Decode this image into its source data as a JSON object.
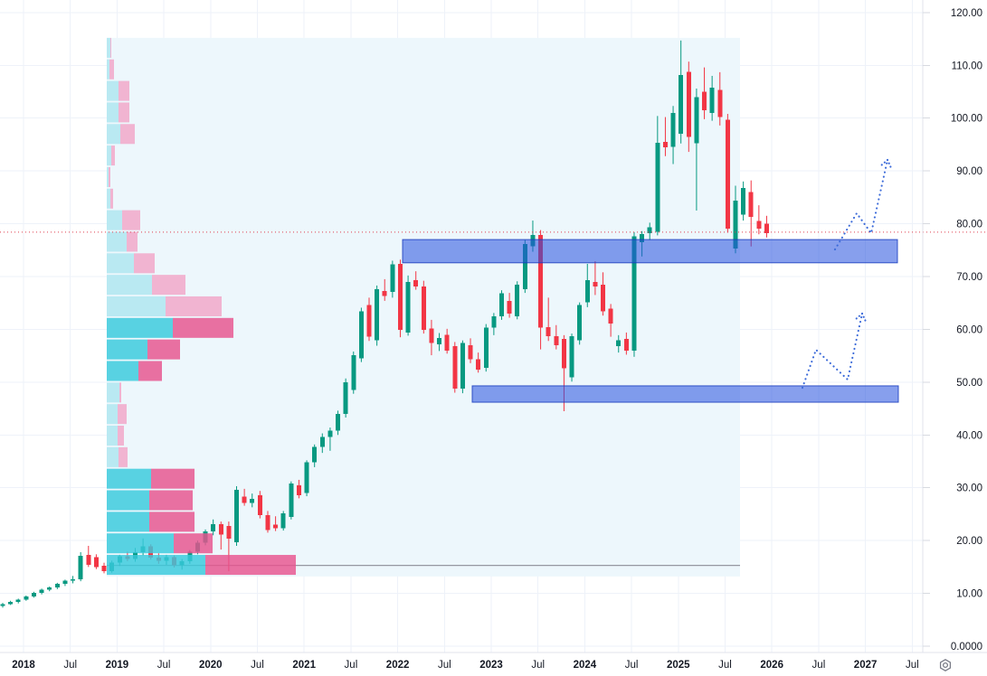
{
  "style": {
    "background": "#ffffff",
    "grid_color": "#eef2f9",
    "axis_border_color": "#e0e3eb",
    "axis_text_color": "#131722",
    "up_color": "#089981",
    "down_color": "#f23645",
    "range_box_fill": "#edf7fc",
    "range_baseline_color": "#9598a1",
    "profile_buy_light": "#aee7f1",
    "profile_sell_light": "#f2a6c8",
    "profile_buy_dark": "#38cadd",
    "profile_sell_dark": "#e8538e",
    "zone_fill": "rgba(37,80,222,0.55)",
    "zone_border": "rgba(25,60,190,0.85)",
    "arrow_color": "#3b6ad9",
    "price_line_color": "#df3d4e",
    "gear_icon_color": "#787b86"
  },
  "price_axis": {
    "ticks": [
      {
        "label": "120.00",
        "value": 120
      },
      {
        "label": "110.00",
        "value": 110
      },
      {
        "label": "100.00",
        "value": 100
      },
      {
        "label": "90.00",
        "value": 90
      },
      {
        "label": "80.00",
        "value": 80
      },
      {
        "label": "70.00",
        "value": 70
      },
      {
        "label": "60.00",
        "value": 60
      },
      {
        "label": "50.00",
        "value": 50
      },
      {
        "label": "40.00",
        "value": 40
      },
      {
        "label": "30.00",
        "value": 30
      },
      {
        "label": "20.00",
        "value": 20
      },
      {
        "label": "10.00",
        "value": 10
      },
      {
        "label": "0.0000",
        "value": 0
      }
    ],
    "settings_icon": "gear-icon"
  },
  "time_axis": {
    "ticks": [
      "2018",
      "Jul",
      "2019",
      "Jul",
      "2020",
      "Jul",
      "2021",
      "Jul",
      "2022",
      "Jul",
      "2023",
      "Jul",
      "2024",
      "Jul",
      "2025",
      "Jul",
      "2026",
      "Jul",
      "2027",
      "Jul"
    ]
  },
  "chart_data": {
    "type": "candlestick",
    "timeframe": "1M",
    "ylim": [
      0,
      123
    ],
    "grid": true,
    "price_line": {
      "value": 78.4,
      "style": "dotted"
    },
    "candles": [
      {
        "t": "2017-10",
        "o": 7.6,
        "h": 8.2,
        "l": 7.3,
        "c": 8.0
      },
      {
        "t": "2017-11",
        "o": 8.0,
        "h": 8.6,
        "l": 7.8,
        "c": 8.4
      },
      {
        "t": "2017-12",
        "o": 8.4,
        "h": 9.0,
        "l": 8.1,
        "c": 8.8
      },
      {
        "t": "2018-01",
        "o": 8.8,
        "h": 9.6,
        "l": 8.6,
        "c": 9.4
      },
      {
        "t": "2018-02",
        "o": 9.4,
        "h": 10.3,
        "l": 9.2,
        "c": 10.1
      },
      {
        "t": "2018-03",
        "o": 10.1,
        "h": 10.9,
        "l": 9.8,
        "c": 10.7
      },
      {
        "t": "2018-04",
        "o": 10.7,
        "h": 11.3,
        "l": 10.4,
        "c": 11.1
      },
      {
        "t": "2018-05",
        "o": 11.1,
        "h": 12.0,
        "l": 10.8,
        "c": 11.8
      },
      {
        "t": "2018-06",
        "o": 11.8,
        "h": 12.6,
        "l": 11.4,
        "c": 12.4
      },
      {
        "t": "2018-07",
        "o": 12.4,
        "h": 13.3,
        "l": 11.9,
        "c": 12.7
      },
      {
        "t": "2018-08",
        "o": 12.7,
        "h": 17.8,
        "l": 12.3,
        "c": 17.1
      },
      {
        "t": "2018-09",
        "o": 17.3,
        "h": 19.0,
        "l": 15.0,
        "c": 15.4
      },
      {
        "t": "2018-10",
        "o": 16.9,
        "h": 17.4,
        "l": 14.6,
        "c": 15.0
      },
      {
        "t": "2018-11",
        "o": 15.2,
        "h": 15.8,
        "l": 13.8,
        "c": 14.2
      },
      {
        "t": "2018-12",
        "o": 14.2,
        "h": 16.2,
        "l": 13.9,
        "c": 15.8
      },
      {
        "t": "2019-01",
        "o": 15.8,
        "h": 17.3,
        "l": 15.2,
        "c": 17.0
      },
      {
        "t": "2019-02",
        "o": 17.0,
        "h": 17.9,
        "l": 16.1,
        "c": 16.5
      },
      {
        "t": "2019-03",
        "o": 16.5,
        "h": 18.6,
        "l": 16.0,
        "c": 17.8
      },
      {
        "t": "2019-04",
        "o": 17.8,
        "h": 20.4,
        "l": 17.2,
        "c": 18.9
      },
      {
        "t": "2019-05",
        "o": 18.9,
        "h": 19.3,
        "l": 16.4,
        "c": 16.8
      },
      {
        "t": "2019-06",
        "o": 16.8,
        "h": 17.6,
        "l": 15.6,
        "c": 16.2
      },
      {
        "t": "2019-07",
        "o": 16.2,
        "h": 17.3,
        "l": 15.4,
        "c": 16.9
      },
      {
        "t": "2019-08",
        "o": 16.9,
        "h": 17.2,
        "l": 14.9,
        "c": 15.3
      },
      {
        "t": "2019-09",
        "o": 15.3,
        "h": 16.5,
        "l": 14.5,
        "c": 16.1
      },
      {
        "t": "2019-10",
        "o": 16.1,
        "h": 18.2,
        "l": 15.6,
        "c": 17.9
      },
      {
        "t": "2019-11",
        "o": 17.9,
        "h": 20.0,
        "l": 17.4,
        "c": 19.6
      },
      {
        "t": "2019-12",
        "o": 19.6,
        "h": 22.1,
        "l": 19.1,
        "c": 21.7
      },
      {
        "t": "2020-01",
        "o": 21.7,
        "h": 24.0,
        "l": 21.0,
        "c": 23.1
      },
      {
        "t": "2020-02",
        "o": 23.1,
        "h": 23.6,
        "l": 18.3,
        "c": 21.1
      },
      {
        "t": "2020-03",
        "o": 22.8,
        "h": 23.6,
        "l": 14.2,
        "c": 20.4
      },
      {
        "t": "2020-04",
        "o": 19.7,
        "h": 30.3,
        "l": 19.0,
        "c": 29.6
      },
      {
        "t": "2020-05",
        "o": 28.3,
        "h": 29.8,
        "l": 26.6,
        "c": 27.1
      },
      {
        "t": "2020-06",
        "o": 27.1,
        "h": 28.9,
        "l": 26.3,
        "c": 27.9
      },
      {
        "t": "2020-07",
        "o": 28.6,
        "h": 29.4,
        "l": 24.2,
        "c": 24.8
      },
      {
        "t": "2020-08",
        "o": 24.8,
        "h": 25.6,
        "l": 21.5,
        "c": 22.0
      },
      {
        "t": "2020-09",
        "o": 23.0,
        "h": 24.6,
        "l": 21.8,
        "c": 22.3
      },
      {
        "t": "2020-10",
        "o": 22.3,
        "h": 25.6,
        "l": 21.9,
        "c": 25.2
      },
      {
        "t": "2020-11",
        "o": 24.5,
        "h": 31.2,
        "l": 24.0,
        "c": 30.8
      },
      {
        "t": "2020-12",
        "o": 30.5,
        "h": 31.5,
        "l": 28.0,
        "c": 28.6
      },
      {
        "t": "2021-01",
        "o": 29.0,
        "h": 35.2,
        "l": 28.4,
        "c": 34.8
      },
      {
        "t": "2021-02",
        "o": 34.8,
        "h": 38.2,
        "l": 33.9,
        "c": 37.7
      },
      {
        "t": "2021-03",
        "o": 37.7,
        "h": 40.3,
        "l": 36.6,
        "c": 39.6
      },
      {
        "t": "2021-04",
        "o": 39.6,
        "h": 41.4,
        "l": 37.0,
        "c": 40.8
      },
      {
        "t": "2021-05",
        "o": 40.8,
        "h": 44.6,
        "l": 40.0,
        "c": 44.0
      },
      {
        "t": "2021-06",
        "o": 44.0,
        "h": 50.7,
        "l": 43.3,
        "c": 50.0
      },
      {
        "t": "2021-07",
        "o": 48.5,
        "h": 55.8,
        "l": 47.8,
        "c": 55.1
      },
      {
        "t": "2021-08",
        "o": 54.5,
        "h": 64.1,
        "l": 53.8,
        "c": 63.4
      },
      {
        "t": "2021-09",
        "o": 64.6,
        "h": 66.0,
        "l": 57.8,
        "c": 58.6
      },
      {
        "t": "2021-10",
        "o": 57.9,
        "h": 68.3,
        "l": 56.9,
        "c": 67.6
      },
      {
        "t": "2021-11",
        "o": 67.3,
        "h": 69.5,
        "l": 65.4,
        "c": 66.3
      },
      {
        "t": "2021-12",
        "o": 67.1,
        "h": 73.0,
        "l": 66.0,
        "c": 72.3
      },
      {
        "t": "2022-01",
        "o": 72.4,
        "h": 73.2,
        "l": 58.5,
        "c": 59.9
      },
      {
        "t": "2022-02",
        "o": 59.4,
        "h": 70.2,
        "l": 58.8,
        "c": 69.0
      },
      {
        "t": "2022-03",
        "o": 69.3,
        "h": 71.0,
        "l": 67.5,
        "c": 68.1
      },
      {
        "t": "2022-04",
        "o": 68.1,
        "h": 69.2,
        "l": 59.2,
        "c": 59.9
      },
      {
        "t": "2022-05",
        "o": 60.2,
        "h": 61.8,
        "l": 55.1,
        "c": 57.4
      },
      {
        "t": "2022-06",
        "o": 57.2,
        "h": 59.3,
        "l": 55.9,
        "c": 58.4
      },
      {
        "t": "2022-07",
        "o": 59.0,
        "h": 60.1,
        "l": 55.4,
        "c": 56.0
      },
      {
        "t": "2022-08",
        "o": 56.8,
        "h": 57.6,
        "l": 48.0,
        "c": 48.8
      },
      {
        "t": "2022-09",
        "o": 48.8,
        "h": 57.9,
        "l": 47.9,
        "c": 57.4
      },
      {
        "t": "2022-10",
        "o": 57.0,
        "h": 58.3,
        "l": 53.6,
        "c": 54.3
      },
      {
        "t": "2022-11",
        "o": 54.3,
        "h": 55.6,
        "l": 51.8,
        "c": 52.4
      },
      {
        "t": "2022-12",
        "o": 52.7,
        "h": 61.0,
        "l": 52.0,
        "c": 60.3
      },
      {
        "t": "2023-01",
        "o": 60.3,
        "h": 63.1,
        "l": 58.9,
        "c": 62.5
      },
      {
        "t": "2023-02",
        "o": 62.5,
        "h": 67.4,
        "l": 61.8,
        "c": 66.8
      },
      {
        "t": "2023-03",
        "o": 65.4,
        "h": 66.9,
        "l": 62.2,
        "c": 63.0
      },
      {
        "t": "2023-04",
        "o": 62.5,
        "h": 69.1,
        "l": 61.9,
        "c": 68.5
      },
      {
        "t": "2023-05",
        "o": 67.6,
        "h": 76.9,
        "l": 66.9,
        "c": 76.2
      },
      {
        "t": "2023-06",
        "o": 75.7,
        "h": 80.6,
        "l": 74.7,
        "c": 77.9
      },
      {
        "t": "2023-07",
        "o": 77.9,
        "h": 78.8,
        "l": 56.2,
        "c": 60.3
      },
      {
        "t": "2023-08",
        "o": 60.4,
        "h": 66.0,
        "l": 57.8,
        "c": 58.7
      },
      {
        "t": "2023-09",
        "o": 58.7,
        "h": 60.8,
        "l": 56.2,
        "c": 57.0
      },
      {
        "t": "2023-10",
        "o": 58.2,
        "h": 58.9,
        "l": 44.5,
        "c": 52.6
      },
      {
        "t": "2023-11",
        "o": 50.9,
        "h": 59.2,
        "l": 50.1,
        "c": 58.7
      },
      {
        "t": "2023-12",
        "o": 57.9,
        "h": 65.1,
        "l": 57.1,
        "c": 64.6
      },
      {
        "t": "2024-01",
        "o": 65.1,
        "h": 72.4,
        "l": 64.2,
        "c": 69.3
      },
      {
        "t": "2024-02",
        "o": 69.0,
        "h": 72.9,
        "l": 66.5,
        "c": 68.1
      },
      {
        "t": "2024-03",
        "o": 68.5,
        "h": 70.8,
        "l": 62.6,
        "c": 63.4
      },
      {
        "t": "2024-04",
        "o": 63.9,
        "h": 64.8,
        "l": 58.6,
        "c": 61.1
      },
      {
        "t": "2024-05",
        "o": 56.8,
        "h": 58.9,
        "l": 55.6,
        "c": 57.9
      },
      {
        "t": "2024-06",
        "o": 58.2,
        "h": 59.4,
        "l": 55.2,
        "c": 56.0
      },
      {
        "t": "2024-07",
        "o": 56.0,
        "h": 78.4,
        "l": 54.8,
        "c": 77.6
      },
      {
        "t": "2024-08",
        "o": 76.5,
        "h": 78.6,
        "l": 73.8,
        "c": 78.0
      },
      {
        "t": "2024-09",
        "o": 78.2,
        "h": 80.2,
        "l": 76.9,
        "c": 79.3
      },
      {
        "t": "2024-10",
        "o": 78.5,
        "h": 100.4,
        "l": 77.8,
        "c": 95.3
      },
      {
        "t": "2024-11",
        "o": 95.5,
        "h": 100.2,
        "l": 92.8,
        "c": 94.5
      },
      {
        "t": "2024-12",
        "o": 94.6,
        "h": 102.3,
        "l": 91.3,
        "c": 101.0
      },
      {
        "t": "2025-01",
        "o": 97.0,
        "h": 114.7,
        "l": 95.2,
        "c": 108.2
      },
      {
        "t": "2025-02",
        "o": 108.8,
        "h": 110.7,
        "l": 93.6,
        "c": 96.4
      },
      {
        "t": "2025-03",
        "o": 95.2,
        "h": 105.6,
        "l": 82.5,
        "c": 104.0
      },
      {
        "t": "2025-04",
        "o": 105.0,
        "h": 109.6,
        "l": 99.8,
        "c": 101.5
      },
      {
        "t": "2025-05",
        "o": 101.0,
        "h": 108.0,
        "l": 99.5,
        "c": 105.8
      },
      {
        "t": "2025-06",
        "o": 105.3,
        "h": 108.7,
        "l": 98.6,
        "c": 100.2
      },
      {
        "t": "2025-07",
        "o": 99.7,
        "h": 100.8,
        "l": 78.3,
        "c": 79.1
      },
      {
        "t": "2025-08",
        "o": 75.3,
        "h": 87.2,
        "l": 74.4,
        "c": 84.4
      },
      {
        "t": "2025-09",
        "o": 81.7,
        "h": 88.0,
        "l": 80.6,
        "c": 86.8
      },
      {
        "t": "2025-10",
        "o": 86.0,
        "h": 88.2,
        "l": 75.7,
        "c": 81.3
      },
      {
        "t": "2025-11",
        "o": 80.5,
        "h": 83.5,
        "l": 78.0,
        "c": 79.1
      },
      {
        "t": "2025-12",
        "o": 80.0,
        "h": 81.5,
        "l": 77.4,
        "c": 78.2
      }
    ],
    "volume_profile": {
      "position": "left",
      "top_price": 115.2,
      "row_price_height": 4.08,
      "rows": [
        {
          "buy": 4,
          "sell": 1,
          "dark": false
        },
        {
          "buy": 3,
          "sell": 5,
          "dark": false
        },
        {
          "buy": 13,
          "sell": 12,
          "dark": false
        },
        {
          "buy": 13,
          "sell": 12,
          "dark": false
        },
        {
          "buy": 15,
          "sell": 16,
          "dark": false
        },
        {
          "buy": 5,
          "sell": 4,
          "dark": false
        },
        {
          "buy": 2,
          "sell": 2,
          "dark": false
        },
        {
          "buy": 4,
          "sell": 3,
          "dark": false
        },
        {
          "buy": 17,
          "sell": 20,
          "dark": false
        },
        {
          "buy": 22,
          "sell": 12,
          "dark": false
        },
        {
          "buy": 30,
          "sell": 23,
          "dark": false
        },
        {
          "buy": 50,
          "sell": 37,
          "dark": false
        },
        {
          "buy": 65,
          "sell": 62,
          "dark": false
        },
        {
          "buy": 73,
          "sell": 67,
          "dark": true
        },
        {
          "buy": 45,
          "sell": 36,
          "dark": true
        },
        {
          "buy": 35,
          "sell": 26,
          "dark": true
        },
        {
          "buy": 14,
          "sell": 2,
          "dark": false
        },
        {
          "buy": 12,
          "sell": 10,
          "dark": false
        },
        {
          "buy": 12,
          "sell": 7,
          "dark": false
        },
        {
          "buy": 13,
          "sell": 10,
          "dark": false
        },
        {
          "buy": 49,
          "sell": 48,
          "dark": true
        },
        {
          "buy": 47,
          "sell": 48,
          "dark": true
        },
        {
          "buy": 47,
          "sell": 50,
          "dark": true
        },
        {
          "buy": 74,
          "sell": 43,
          "dark": true
        },
        {
          "buy": 109,
          "sell": 100,
          "dark": true
        }
      ],
      "range_box": {
        "x1": 118,
        "x2": 818,
        "top_price": 115.2,
        "bottom_price": 13.2,
        "baseline_price": 15.3
      }
    },
    "zones": [
      {
        "name": "supply-zone",
        "top_price": 77.0,
        "bottom_price": 72.6,
        "x1": 445,
        "x2": 992
      },
      {
        "name": "demand-zone",
        "top_price": 49.3,
        "bottom_price": 46.2,
        "x1": 522,
        "x2": 993
      }
    ],
    "projection_arrows": [
      {
        "name": "upper-projection",
        "points": [
          [
            923,
            276
          ],
          [
            947,
            236
          ],
          [
            963,
            258
          ],
          [
            981,
            177
          ]
        ]
      },
      {
        "name": "lower-projection",
        "points": [
          [
            887,
            429
          ],
          [
            902,
            387
          ],
          [
            937,
            420
          ],
          [
            953,
            347
          ]
        ]
      }
    ]
  }
}
